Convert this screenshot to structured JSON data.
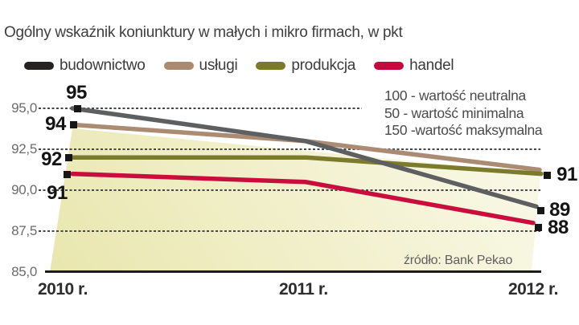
{
  "title": "Ogólny wskaźnik koniunktury w małych i mikro firmach, w pkt",
  "legend": {
    "items": [
      {
        "label": "budownictwo",
        "color": "#26221f"
      },
      {
        "label": "usługi",
        "color": "#aa8a70"
      },
      {
        "label": "produkcja",
        "color": "#7b792a"
      },
      {
        "label": "handel",
        "color": "#c40a3c"
      }
    ]
  },
  "annotations": [
    "100 - wartość neutralna",
    "50 - wartość minimalna",
    "150 -wartość maksymalna"
  ],
  "source": "źródło: Bank Pekao",
  "chart_data": {
    "type": "line",
    "x_categories": [
      "2010 r.",
      "2011 r.",
      "2012 r."
    ],
    "y_ticks": [
      "95,0",
      "92,5",
      "90,0",
      "87,5",
      "85,0"
    ],
    "ylim": [
      85,
      96
    ],
    "grid": "horizontal-dashed",
    "legend_position": "top",
    "series": [
      {
        "name": "budownictwo",
        "line_color": "#5e5f61",
        "values": [
          95,
          93,
          89
        ],
        "start_label": "95",
        "end_label": "89"
      },
      {
        "name": "usługi",
        "line_color": "#ab8b71",
        "values": [
          94,
          93,
          91
        ],
        "start_label": "94",
        "end_label": ""
      },
      {
        "name": "produkcja",
        "line_color": "#7c7a2b",
        "values": [
          92,
          92,
          91
        ],
        "start_label": "92",
        "end_label": "91"
      },
      {
        "name": "handel",
        "line_color": "#c90e3e",
        "values": [
          91,
          90.5,
          88
        ],
        "start_label": "91",
        "end_label": "88"
      }
    ]
  }
}
